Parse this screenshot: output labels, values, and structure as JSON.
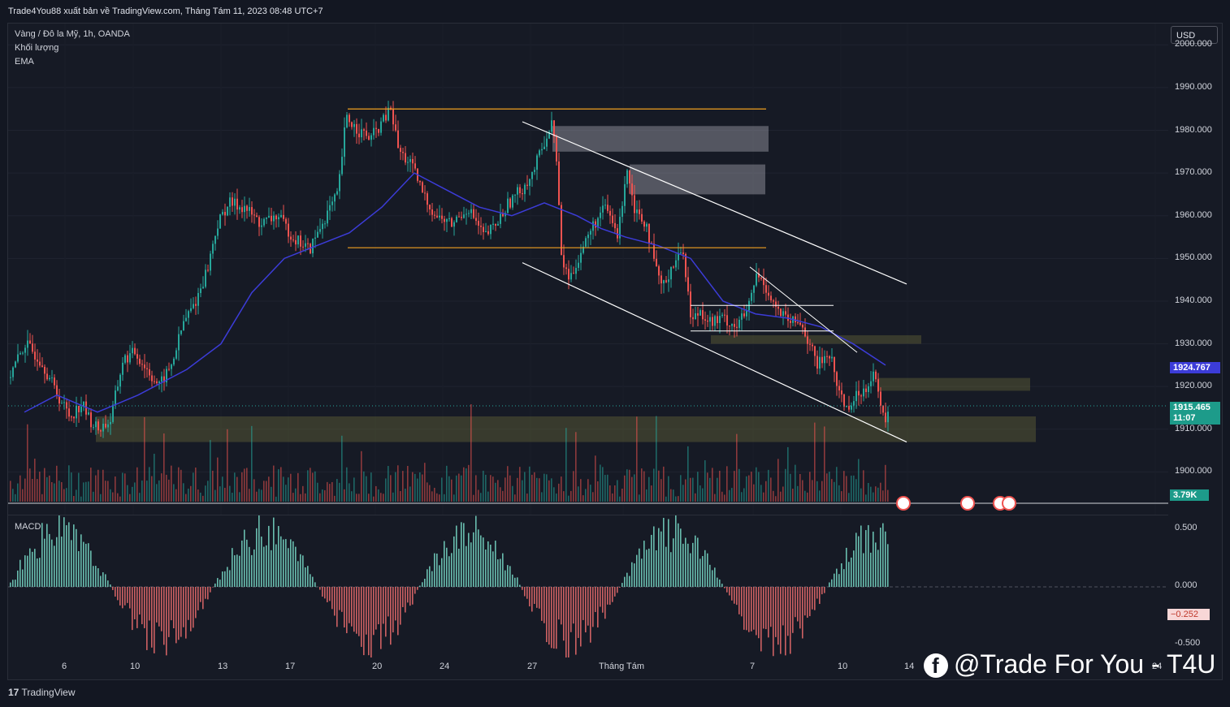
{
  "header": {
    "text": "Trade4You88 xuất bản về TradingView.com, Tháng Tám 11, 2023 08:48 UTC+7"
  },
  "legend": {
    "symbol": "Vàng / Đô la Mỹ, 1h, OANDA",
    "volume": "Khối lượng",
    "ema": "EMA",
    "macd": "MACD"
  },
  "currency": "USD",
  "footer": {
    "logo": "TradingView"
  },
  "watermark": {
    "text": "@Trade For You - T4U",
    "icon": "facebook-icon"
  },
  "price_tags": {
    "ema": "1924.767",
    "last": "1915.465",
    "countdown": "11:07",
    "volume": "3.79K",
    "macd": "−0.252"
  },
  "colors": {
    "background": "#131722",
    "up": "#26a69a",
    "down": "#ef5350",
    "ema": "#3c3cd8",
    "zone_orange": "#f0a020",
    "channel": "#ffffff"
  },
  "chart_data": {
    "type": "candlestick",
    "title": "Vàng / Đô la Mỹ, 1h, OANDA",
    "price_axis": {
      "ticks": [
        "2000.000",
        "1990.000",
        "1980.000",
        "1970.000",
        "1960.000",
        "1950.000",
        "1940.000",
        "1930.000",
        "1920.000",
        "1910.000",
        "1900.000"
      ],
      "range": [
        1890,
        2005
      ]
    },
    "macd_axis": {
      "ticks": [
        "0.500",
        "0.000",
        "-0.500"
      ],
      "range": [
        -0.62,
        0.62
      ]
    },
    "time_axis": {
      "ticks": [
        "6",
        "10",
        "13",
        "17",
        "20",
        "24",
        "27",
        "Tháng Tám",
        "7",
        "10",
        "14",
        "24"
      ]
    },
    "price_path": [
      [
        0,
        1922
      ],
      [
        20,
        1930
      ],
      [
        40,
        1926
      ],
      [
        60,
        1918
      ],
      [
        75,
        1913
      ],
      [
        90,
        1916
      ],
      [
        100,
        1912
      ],
      [
        110,
        1910
      ],
      [
        125,
        1912
      ],
      [
        140,
        1926
      ],
      [
        155,
        1928
      ],
      [
        170,
        1924
      ],
      [
        185,
        1920
      ],
      [
        200,
        1925
      ],
      [
        215,
        1935
      ],
      [
        230,
        1940
      ],
      [
        245,
        1948
      ],
      [
        255,
        1957
      ],
      [
        270,
        1963
      ],
      [
        290,
        1962
      ],
      [
        310,
        1958
      ],
      [
        330,
        1960
      ],
      [
        350,
        1955
      ],
      [
        370,
        1952
      ],
      [
        390,
        1960
      ],
      [
        405,
        1965
      ],
      [
        415,
        1983
      ],
      [
        430,
        1980
      ],
      [
        445,
        1978
      ],
      [
        460,
        1982
      ],
      [
        470,
        1985
      ],
      [
        480,
        1975
      ],
      [
        495,
        1972
      ],
      [
        510,
        1965
      ],
      [
        525,
        1960
      ],
      [
        545,
        1958
      ],
      [
        565,
        1962
      ],
      [
        585,
        1955
      ],
      [
        600,
        1958
      ],
      [
        615,
        1963
      ],
      [
        630,
        1966
      ],
      [
        645,
        1970
      ],
      [
        660,
        1978
      ],
      [
        670,
        1982
      ],
      [
        675,
        1970
      ],
      [
        680,
        1950
      ],
      [
        690,
        1945
      ],
      [
        705,
        1952
      ],
      [
        720,
        1958
      ],
      [
        735,
        1962
      ],
      [
        750,
        1955
      ],
      [
        760,
        1972
      ],
      [
        770,
        1962
      ],
      [
        785,
        1958
      ],
      [
        795,
        1948
      ],
      [
        805,
        1943
      ],
      [
        815,
        1948
      ],
      [
        830,
        1952
      ],
      [
        840,
        1935
      ],
      [
        850,
        1938
      ],
      [
        865,
        1935
      ],
      [
        880,
        1936
      ],
      [
        895,
        1934
      ],
      [
        910,
        1938
      ],
      [
        920,
        1946
      ],
      [
        930,
        1944
      ],
      [
        945,
        1938
      ],
      [
        960,
        1935
      ],
      [
        975,
        1935
      ],
      [
        985,
        1930
      ],
      [
        995,
        1925
      ],
      [
        1010,
        1928
      ],
      [
        1020,
        1920
      ],
      [
        1030,
        1915
      ],
      [
        1045,
        1918
      ],
      [
        1055,
        1920
      ],
      [
        1065,
        1924
      ],
      [
        1072,
        1915
      ],
      [
        1078,
        1912
      ],
      [
        1085,
        1916
      ]
    ],
    "ema_path": [
      [
        20,
        1914
      ],
      [
        60,
        1918
      ],
      [
        110,
        1914
      ],
      [
        160,
        1918
      ],
      [
        220,
        1924
      ],
      [
        262,
        1930
      ],
      [
        300,
        1942
      ],
      [
        340,
        1950
      ],
      [
        380,
        1953
      ],
      [
        420,
        1956
      ],
      [
        460,
        1962
      ],
      [
        500,
        1970
      ],
      [
        540,
        1966
      ],
      [
        580,
        1962
      ],
      [
        620,
        1960
      ],
      [
        660,
        1963
      ],
      [
        700,
        1960
      ],
      [
        730,
        1957
      ],
      [
        760,
        1955
      ],
      [
        800,
        1953
      ],
      [
        840,
        1950
      ],
      [
        880,
        1940
      ],
      [
        920,
        1937
      ],
      [
        960,
        1936
      ],
      [
        1000,
        1934
      ],
      [
        1040,
        1930
      ],
      [
        1080,
        1925
      ]
    ],
    "levels": [
      {
        "type": "horizontal",
        "price": 1985,
        "from": 418,
        "to": 933,
        "color": "orange"
      },
      {
        "type": "horizontal",
        "price": 1952.5,
        "from": 418,
        "to": 933,
        "color": "orange"
      },
      {
        "type": "channel-upper",
        "p1": [
          633,
          1982
        ],
        "p2": [
          1106,
          1944
        ]
      },
      {
        "type": "channel-lower",
        "p1": [
          633,
          1949
        ],
        "p2": [
          1106,
          1907
        ]
      }
    ],
    "zones": [
      {
        "top": 1981,
        "bottom": 1975,
        "from": 670,
        "to": 936,
        "color": "gray"
      },
      {
        "top": 1972,
        "bottom": 1965,
        "from": 765,
        "to": 932,
        "color": "gray"
      },
      {
        "top": 1932,
        "bottom": 1930,
        "from": 865,
        "to": 1124,
        "color": "olive"
      },
      {
        "top": 1922,
        "bottom": 1919,
        "from": 1070,
        "to": 1258,
        "color": "olive"
      },
      {
        "top": 1913,
        "bottom": 1907,
        "from": 108,
        "to": 1265,
        "color": "olive"
      }
    ],
    "last_price": 1915.465,
    "ema_value": 1924.767,
    "volume_last": "3.79K",
    "macd_last": -0.252
  }
}
